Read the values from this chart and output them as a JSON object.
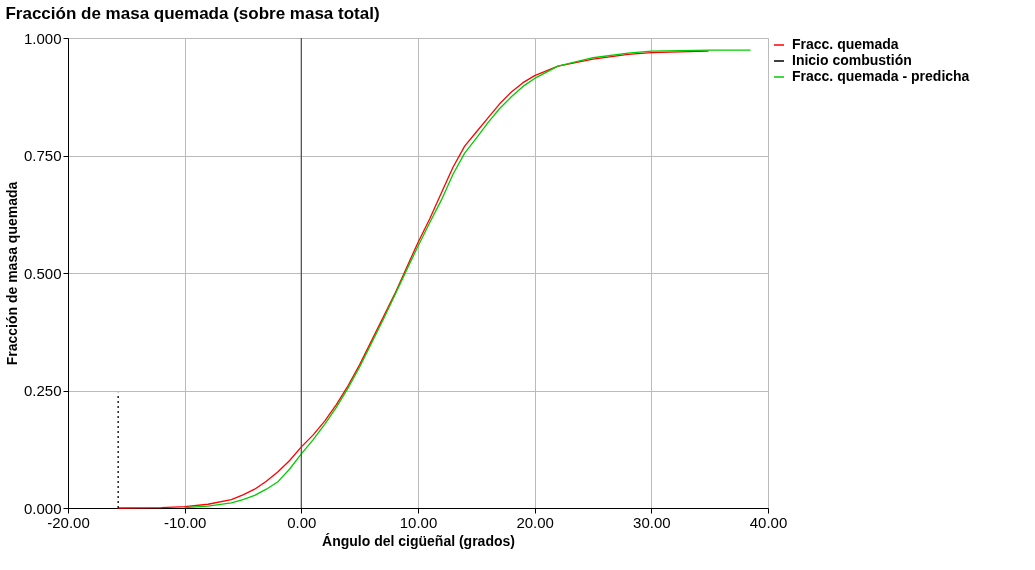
{
  "chart_data": {
    "type": "line",
    "title": "Fracción de masa quemada (sobre masa total)",
    "xlabel": "Ángulo del cigüeñal (grados)",
    "ylabel": "Fracción de masa quemada",
    "xlim": [
      -20,
      40
    ],
    "xticks": [
      {
        "value": -20,
        "label": "-20.00"
      },
      {
        "value": -10,
        "label": "-10.00"
      },
      {
        "value": 0,
        "label": "0.00"
      },
      {
        "value": 10,
        "label": "10.00"
      },
      {
        "value": 20,
        "label": "20.00"
      },
      {
        "value": 30,
        "label": "30.00"
      },
      {
        "value": 40,
        "label": "40.00"
      }
    ],
    "ylim": [
      0,
      1
    ],
    "yticks": [
      {
        "value": 0,
        "label": "0.000"
      },
      {
        "value": 0.25,
        "label": "0.250"
      },
      {
        "value": 0.5,
        "label": "0.500"
      },
      {
        "value": 0.75,
        "label": "0.750"
      },
      {
        "value": 1,
        "label": "1.000"
      }
    ],
    "grid": true,
    "legend": "top right",
    "marker": "none",
    "ref_lines": [
      {
        "axis": "x",
        "value": 0,
        "color": "#555555"
      }
    ],
    "series": [
      {
        "name": "Fracc. quemada",
        "color": "#ff0000",
        "line_style": "solid",
        "x": [
          -15.7,
          -12,
          -10,
          -8,
          -6,
          -5,
          -4,
          -3,
          -2,
          -1,
          0,
          1,
          2,
          3,
          4,
          5,
          6,
          7,
          8,
          9,
          10,
          11,
          12,
          13,
          14,
          15,
          16,
          17,
          18,
          19,
          20,
          22,
          25,
          28,
          30,
          34.9
        ],
        "values": [
          0,
          0.001,
          0.003,
          0.008,
          0.018,
          0.028,
          0.04,
          0.057,
          0.077,
          0.101,
          0.13,
          0.155,
          0.185,
          0.22,
          0.26,
          0.305,
          0.355,
          0.405,
          0.455,
          0.51,
          0.565,
          0.615,
          0.67,
          0.725,
          0.77,
          0.8,
          0.83,
          0.86,
          0.885,
          0.905,
          0.92,
          0.94,
          0.955,
          0.965,
          0.969,
          0.972
        ]
      },
      {
        "name": "Inicio combustión",
        "color": "#000000",
        "line_style": "dotted",
        "x": [
          -15.7,
          -15.7
        ],
        "values": [
          0,
          0.245
        ]
      },
      {
        "name": "Fracc. quemada - predicha",
        "color": "#00cc00",
        "line_style": "solid",
        "x": [
          -10,
          -8,
          -6,
          -5,
          -4,
          -3,
          -2,
          -1,
          0,
          1,
          2,
          3,
          4,
          5,
          6,
          7,
          8,
          9,
          10,
          11,
          12,
          13,
          14,
          15,
          16,
          17,
          18,
          19,
          20,
          22,
          25,
          28,
          30,
          35,
          38.5
        ],
        "values": [
          0.001,
          0.004,
          0.011,
          0.018,
          0.027,
          0.04,
          0.056,
          0.083,
          0.115,
          0.145,
          0.178,
          0.214,
          0.255,
          0.3,
          0.35,
          0.4,
          0.452,
          0.505,
          0.557,
          0.607,
          0.655,
          0.71,
          0.755,
          0.787,
          0.82,
          0.85,
          0.875,
          0.897,
          0.914,
          0.94,
          0.958,
          0.968,
          0.972,
          0.974,
          0.974
        ]
      }
    ]
  }
}
